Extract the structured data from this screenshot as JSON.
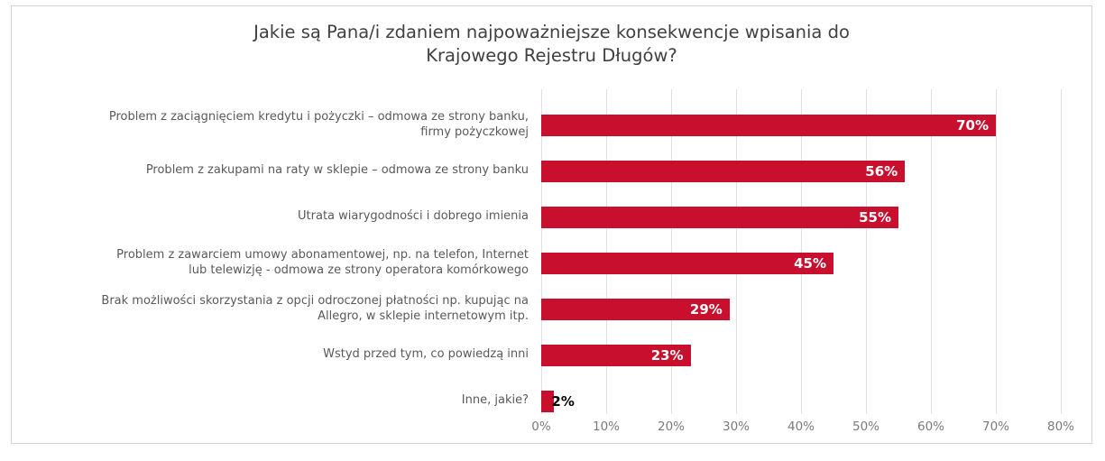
{
  "chart_data": {
    "type": "bar",
    "orientation": "horizontal",
    "title": "Jakie są Pana/i zdaniem najpoważniejsze konsekwencje wpisania do Krajowego Rejestru Długów?",
    "title_lines": [
      "Jakie są Pana/i zdaniem najpoważniejsze konsekwencje wpisania do",
      "Krajowego Rejestru Długów?"
    ],
    "categories": [
      "Problem z zaciągnięciem kredytu i pożyczki – odmowa ze strony banku, firmy pożyczkowej",
      "Problem z zakupami na raty w sklepie – odmowa ze strony banku",
      "Utrata wiarygodności i dobrego imienia",
      "Problem z zawarciem umowy abonamentowej, np. na telefon, Internet lub telewizję - odmowa ze strony operatora komórkowego",
      "Brak możliwości skorzystania z opcji odroczonej płatności np. kupując na Allegro, w sklepie internetowym itp.",
      "Wstyd przed tym, co powiedzą inni",
      "Inne, jakie?"
    ],
    "category_lines": [
      [
        "Problem z zaciągnięciem kredytu i pożyczki – odmowa ze strony banku,",
        "firmy pożyczkowej"
      ],
      [
        "Problem z zakupami na raty w sklepie – odmowa ze strony banku"
      ],
      [
        "Utrata wiarygodności i dobrego imienia"
      ],
      [
        "Problem z zawarciem umowy abonamentowej, np. na telefon, Internet",
        "lub telewizję - odmowa ze strony operatora komórkowego"
      ],
      [
        "Brak możliwości skorzystania z opcji odroczonej płatności np. kupując na",
        "Allegro, w sklepie internetowym itp."
      ],
      [
        "Wstyd przed tym, co powiedzą inni"
      ],
      [
        "Inne, jakie?"
      ]
    ],
    "values": [
      70,
      56,
      55,
      45,
      29,
      23,
      2
    ],
    "value_labels": [
      "70%",
      "56%",
      "55%",
      "45%",
      "29%",
      "23%",
      "2%"
    ],
    "xlabel": "",
    "ylabel": "",
    "x_axis": {
      "min": 0,
      "max": 80,
      "step": 10,
      "ticks": [
        "0%",
        "10%",
        "20%",
        "30%",
        "40%",
        "50%",
        "60%",
        "70%",
        "80%"
      ]
    },
    "grid": "vertical-only",
    "legend": "none",
    "colors": {
      "bar": "#C8102E",
      "value_label_inside": "#FFFFFF",
      "value_label_outside": "#000000",
      "gridline": "#E0E0E0",
      "frame_border": "#D2D2D2",
      "title_text": "#404040",
      "category_text": "#595959",
      "axis_tick_text": "#7A7A7A",
      "background": "#FFFFFF"
    }
  }
}
